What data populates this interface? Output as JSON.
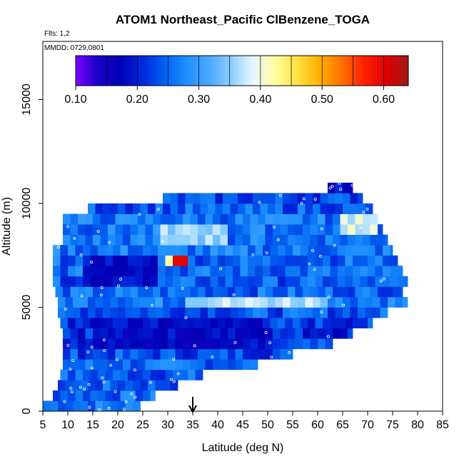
{
  "title": "ATOM1 Northeast_Pacific ClBenzene_TOGA",
  "flights_label": "Flts: 1,2",
  "dates_label": "MMDD: 0729,0801",
  "chart_data": {
    "type": "heatmap",
    "xlabel": "Latitude (deg N)",
    "ylabel": "Altitude (m)",
    "xlim": [
      5,
      85
    ],
    "ylim": [
      0,
      17500
    ],
    "xticks": [
      5,
      10,
      15,
      20,
      25,
      30,
      35,
      40,
      45,
      50,
      55,
      60,
      65,
      70,
      75,
      80,
      85
    ],
    "yticks": [
      0,
      5000,
      10000,
      15000
    ],
    "colorbar": {
      "min": 0.1,
      "max": 0.64,
      "ticks": [
        0.1,
        0.2,
        0.3,
        0.4,
        0.5,
        0.6
      ],
      "tick_labels": [
        "0.10",
        "0.20",
        "0.30",
        "0.40",
        "0.50",
        "0.60"
      ],
      "stops": [
        "#7b00ff",
        "#1a00c8",
        "#0000b4",
        "#0028dc",
        "#0060f0",
        "#1e90ff",
        "#4aa8ff",
        "#8ccfff",
        "#e8f6ff",
        "#ffffa0",
        "#ffe040",
        "#ffb000",
        "#ff7000",
        "#ff2000",
        "#e00000",
        "#a01818"
      ]
    },
    "marker": {
      "x": 35,
      "label": "arrow"
    },
    "rows": [
      {
        "alt": 250,
        "x0": 5,
        "x1": 24.5,
        "base": 0.26
      },
      {
        "alt": 750,
        "x0": 7,
        "x1": 27.5,
        "base": 0.25
      },
      {
        "alt": 1250,
        "x0": 8,
        "x1": 32,
        "base": 0.24
      },
      {
        "alt": 1750,
        "x0": 8.5,
        "x1": 37,
        "base": 0.24
      },
      {
        "alt": 2250,
        "x0": 9,
        "x1": 48,
        "base": 0.25
      },
      {
        "alt": 2750,
        "x0": 9,
        "x1": 55,
        "base": 0.23
      },
      {
        "alt": 3250,
        "x0": 9,
        "x1": 63,
        "base": 0.22
      },
      {
        "alt": 3750,
        "x0": 9,
        "x1": 67,
        "base": 0.21
      },
      {
        "alt": 4250,
        "x0": 8.5,
        "x1": 71,
        "base": 0.22
      },
      {
        "alt": 4750,
        "x0": 8,
        "x1": 74,
        "base": 0.24
      },
      {
        "alt": 5250,
        "x0": 8,
        "x1": 78,
        "base": 0.27
      },
      {
        "alt": 5750,
        "x0": 7.5,
        "x1": 77,
        "base": 0.25
      },
      {
        "alt": 6250,
        "x0": 7,
        "x1": 78,
        "base": 0.24
      },
      {
        "alt": 6750,
        "x0": 7,
        "x1": 77,
        "base": 0.25
      },
      {
        "alt": 7250,
        "x0": 7,
        "x1": 76,
        "base": 0.25
      },
      {
        "alt": 7750,
        "x0": 7,
        "x1": 75,
        "base": 0.26
      },
      {
        "alt": 8250,
        "x0": 9,
        "x1": 74,
        "base": 0.26
      },
      {
        "alt": 8750,
        "x0": 9,
        "x1": 73,
        "base": 0.26
      },
      {
        "alt": 9250,
        "x0": 9,
        "x1": 72,
        "base": 0.26
      },
      {
        "alt": 9750,
        "x0": 14,
        "x1": 71,
        "base": 0.24
      },
      {
        "alt": 10250,
        "x0": 29,
        "x1": 69,
        "base": 0.23
      },
      {
        "alt": 10750,
        "x0": 62,
        "x1": 67,
        "base": 0.2
      }
    ]
  }
}
